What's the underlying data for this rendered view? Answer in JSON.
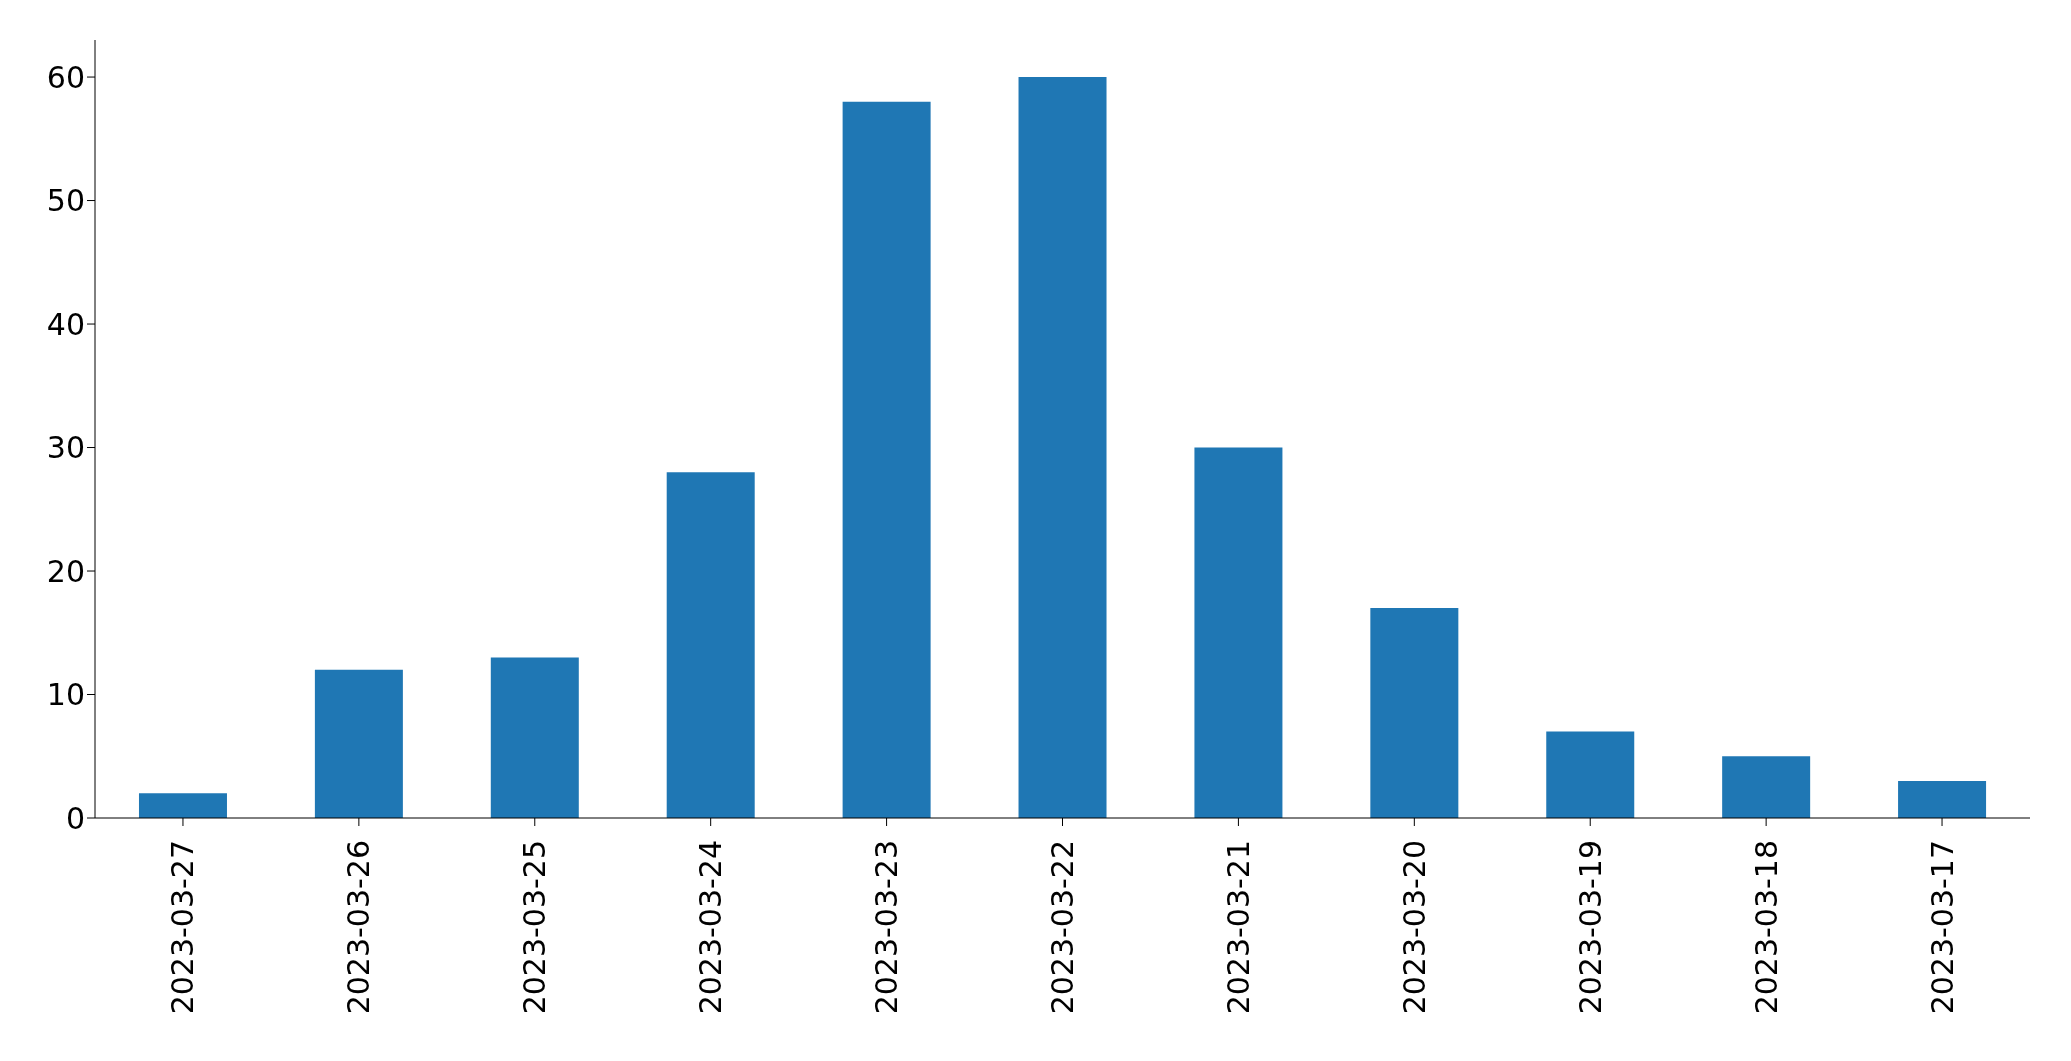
{
  "chart_data": {
    "type": "bar",
    "categories": [
      "2023-03-27",
      "2023-03-26",
      "2023-03-25",
      "2023-03-24",
      "2023-03-23",
      "2023-03-22",
      "2023-03-21",
      "2023-03-20",
      "2023-03-19",
      "2023-03-18",
      "2023-03-17"
    ],
    "values": [
      2,
      12,
      13,
      28,
      58,
      60,
      30,
      17,
      7,
      5,
      3
    ],
    "color": "#1f77b4",
    "ylim": [
      0,
      63
    ],
    "yticks": [
      0,
      10,
      20,
      30,
      40,
      50,
      60
    ]
  }
}
